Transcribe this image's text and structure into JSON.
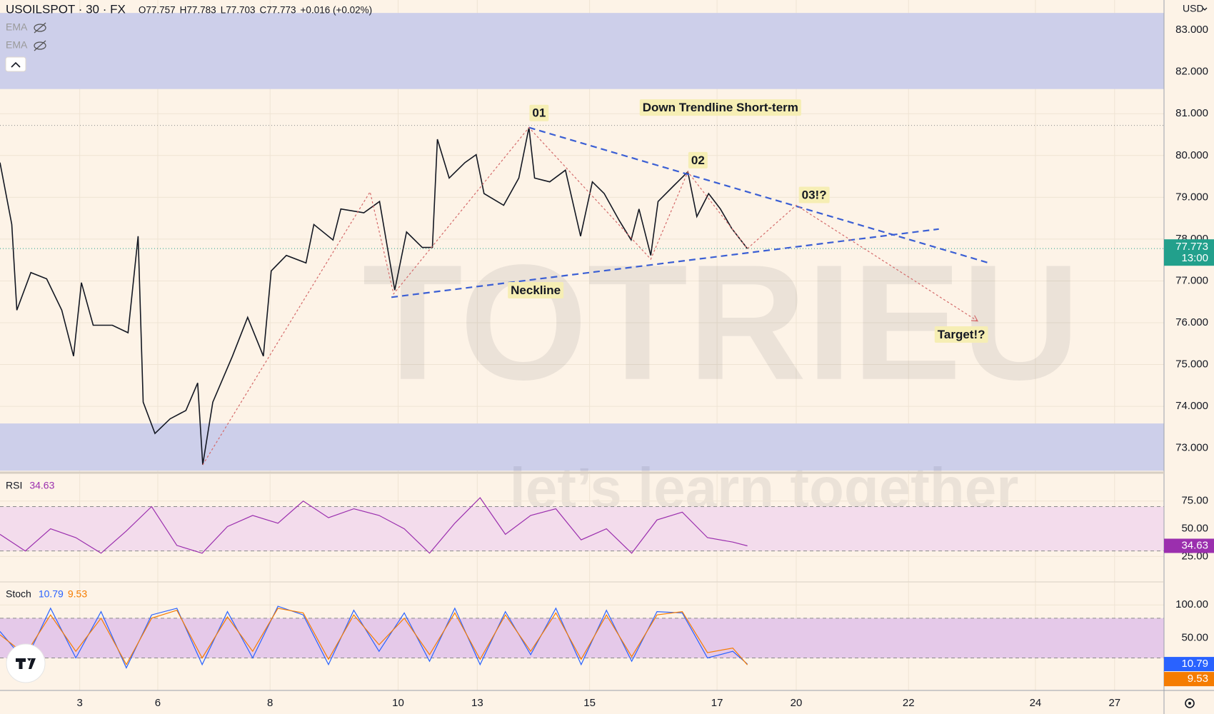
{
  "chart_data": [
    {
      "type": "line",
      "title": "USOILSPOT · 30 · FX",
      "legend_items": [
        "O77.757",
        "H77.783",
        "L77.703",
        "C77.773",
        "+0.016 (+0.02%)"
      ],
      "indicators": [
        "EMA",
        "EMA"
      ],
      "currency": "USD",
      "watermark": [
        "TOTRIEU",
        "let’s learn together"
      ],
      "xlim": [
        0,
        20.73
      ],
      "xticks": [
        {
          "value": 1.42,
          "label": "3"
        },
        {
          "value": 2.81,
          "label": "6"
        },
        {
          "value": 4.81,
          "label": "8"
        },
        {
          "value": 7.09,
          "label": "10"
        },
        {
          "value": 8.5,
          "label": "13"
        },
        {
          "value": 10.5,
          "label": "15"
        },
        {
          "value": 12.77,
          "label": "17"
        },
        {
          "value": 14.18,
          "label": "20"
        },
        {
          "value": 16.18,
          "label": "22"
        },
        {
          "value": 18.44,
          "label": "24"
        },
        {
          "value": 19.85,
          "label": "27"
        }
      ],
      "ylim": [
        72.43,
        83.72
      ],
      "yticks": [
        {
          "value": 73,
          "label": "73.000"
        },
        {
          "value": 74,
          "label": "74.000"
        },
        {
          "value": 75,
          "label": "75.000"
        },
        {
          "value": 76,
          "label": "76.000"
        },
        {
          "value": 77,
          "label": "77.000"
        },
        {
          "value": 78,
          "label": "78.000"
        },
        {
          "value": 79,
          "label": "79.000"
        },
        {
          "value": 80,
          "label": "80.000"
        },
        {
          "value": 81,
          "label": "81.000"
        },
        {
          "value": 82,
          "label": "82.000"
        },
        {
          "value": 83,
          "label": "83.000"
        }
      ],
      "grid": true,
      "zones": [
        {
          "from": 81.59,
          "to": 83.41
        },
        {
          "from": 72.46,
          "to": 73.59
        }
      ],
      "zone_color": "#cdcfea",
      "hlines": [
        80.72
      ],
      "last_price": 77.773,
      "last_time": "13:00",
      "last_color": "#22a08c",
      "series": [
        {
          "color": "#131722",
          "x": [
            0,
            0.21,
            0.3,
            0.55,
            0.83,
            1.1,
            1.31,
            1.45,
            1.66,
            2,
            2.28,
            2.46,
            2.55,
            2.76,
            3.03,
            3.31,
            3.52,
            3.61,
            3.79,
            4.14,
            4.41,
            4.69,
            4.83,
            5.1,
            5.45,
            5.59,
            5.93,
            6.07,
            6.48,
            6.76,
            6.9,
            7.03,
            7.24,
            7.52,
            7.7,
            7.79,
            8,
            8.28,
            8.48,
            8.62,
            8.97,
            9.24,
            9.42,
            9.52,
            9.79,
            10.07,
            10.34,
            10.55,
            10.76,
            11.03,
            11.24,
            11.38,
            11.59,
            11.72,
            12,
            12.25,
            12.41,
            12.62,
            12.83,
            13.03,
            13.31
          ],
          "values": [
            79.83,
            78.35,
            76.3,
            77.2,
            77.05,
            76.3,
            75.2,
            76.96,
            75.94,
            75.94,
            75.76,
            78.07,
            74.1,
            73.35,
            73.7,
            73.9,
            74.56,
            72.6,
            74.1,
            75.2,
            76.13,
            75.2,
            77.24,
            77.61,
            77.43,
            78.35,
            77.98,
            78.72,
            78.63,
            78.9,
            77.8,
            76.78,
            78.17,
            77.8,
            77.8,
            80.39,
            79.46,
            79.83,
            80.02,
            79.09,
            78.81,
            79.46,
            80.67,
            79.46,
            79.37,
            79.65,
            78.07,
            79.37,
            79.09,
            78.44,
            77.98,
            78.72,
            77.61,
            78.9,
            79.28,
            79.61,
            78.54,
            79.09,
            78.72,
            78.26,
            77.773
          ]
        }
      ],
      "lines": [
        {
          "style": "dashed",
          "color": "#3b5fd4",
          "x": [
            9.42,
            17.61
          ],
          "y": [
            80.67,
            77.43
          ]
        },
        {
          "style": "dashed",
          "color": "#3b5fd4",
          "x": [
            6.97,
            16.72
          ],
          "y": [
            76.61,
            78.24
          ]
        },
        {
          "style": "dotted",
          "color": "#d46a6a",
          "x": [
            3.61,
            6.59,
            7.01,
            9.42,
            11.59,
            12.25,
            13.31
          ],
          "y": [
            72.6,
            79.13,
            76.69,
            80.67,
            77.52,
            79.61,
            77.773
          ]
        },
        {
          "style": "dotted",
          "color": "#d46a6a",
          "arrow": true,
          "x": [
            13.31,
            14.18,
            17.41
          ],
          "y": [
            77.773,
            78.81,
            76.04
          ]
        }
      ],
      "annotations": [
        {
          "text": "01",
          "x": 9.6,
          "y": 81.0
        },
        {
          "text": "Down Trendline Short-term",
          "x": 12.83,
          "y": 81.13
        },
        {
          "text": "02",
          "x": 12.43,
          "y": 79.87
        },
        {
          "text": "03!?",
          "x": 14.5,
          "y": 79.04
        },
        {
          "text": "Neckline",
          "x": 9.54,
          "y": 76.76
        },
        {
          "text": "Target!?",
          "x": 17.12,
          "y": 75.7
        }
      ]
    },
    {
      "type": "line",
      "title": "RSI",
      "xlim": [
        0,
        20.73
      ],
      "ylim": [
        2.1,
        99.3
      ],
      "yticks": [
        {
          "value": 25,
          "label": "25.00"
        },
        {
          "value": 50,
          "label": "50.00"
        },
        {
          "value": 75,
          "label": "75.00"
        }
      ],
      "grid": true,
      "band": [
        30,
        70
      ],
      "band_color": "#f3dcec",
      "series": [
        {
          "color": "#9b2fae",
          "x": [
            0,
            0.45,
            0.9,
            1.35,
            1.8,
            2.25,
            2.7,
            3.15,
            3.6,
            4.05,
            4.5,
            4.95,
            5.4,
            5.85,
            6.3,
            6.75,
            7.2,
            7.65,
            8.1,
            8.55,
            9,
            9.45,
            9.9,
            10.35,
            10.8,
            11.25,
            11.7,
            12.15,
            12.6,
            13.05,
            13.31
          ],
          "values": [
            45,
            30,
            50,
            42,
            28,
            48,
            70,
            35,
            28,
            52,
            62,
            55,
            75,
            60,
            68,
            62,
            50,
            28,
            55,
            78,
            45,
            62,
            68,
            40,
            50,
            28,
            58,
            65,
            42,
            38,
            34.63
          ]
        }
      ]
    },
    {
      "type": "line",
      "title": "Stoch",
      "xlim": [
        0,
        20.73
      ],
      "ylim": [
        -29,
        133.7
      ],
      "yticks": [
        {
          "value": 50,
          "label": "50.00"
        },
        {
          "value": 100,
          "label": "100.00"
        }
      ],
      "grid": true,
      "band": [
        20,
        80
      ],
      "band_color": "#e5c9e9",
      "series": [
        {
          "color": "#2962ff",
          "x": [
            0,
            0.45,
            0.9,
            1.35,
            1.8,
            2.25,
            2.7,
            3.15,
            3.6,
            4.05,
            4.5,
            4.95,
            5.4,
            5.85,
            6.3,
            6.75,
            7.2,
            7.65,
            8.1,
            8.55,
            9,
            9.45,
            9.9,
            10.35,
            10.8,
            11.25,
            11.7,
            12.15,
            12.6,
            13.05,
            13.31
          ],
          "values": [
            60,
            15,
            95,
            20,
            90,
            5,
            85,
            95,
            10,
            90,
            20,
            98,
            85,
            10,
            92,
            30,
            88,
            15,
            95,
            10,
            90,
            25,
            95,
            10,
            92,
            15,
            90,
            88,
            20,
            30,
            10.79
          ]
        },
        {
          "color": "#f57c00",
          "x": [
            0,
            0.45,
            0.9,
            1.35,
            1.8,
            2.25,
            2.7,
            3.15,
            3.6,
            4.05,
            4.5,
            4.95,
            5.4,
            5.85,
            6.3,
            6.75,
            7.2,
            7.65,
            8.1,
            8.55,
            9,
            9.45,
            9.9,
            10.35,
            10.8,
            11.25,
            11.7,
            12.15,
            12.6,
            13.05,
            13.31
          ],
          "values": [
            55,
            25,
            85,
            30,
            80,
            10,
            80,
            92,
            20,
            82,
            30,
            95,
            88,
            18,
            85,
            40,
            80,
            25,
            88,
            18,
            85,
            30,
            88,
            18,
            85,
            22,
            85,
            90,
            28,
            35,
            9.53
          ]
        }
      ]
    }
  ]
}
